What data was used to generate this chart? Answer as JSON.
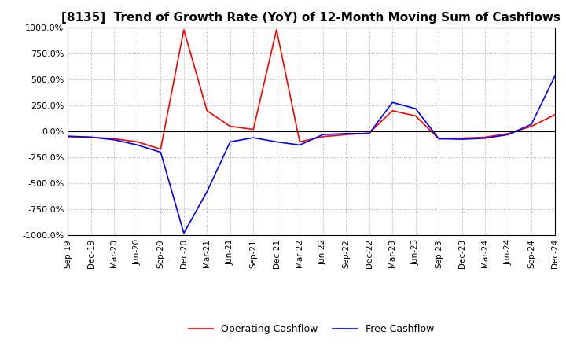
{
  "title": "[8135]  Trend of Growth Rate (YoY) of 12-Month Moving Sum of Cashflows",
  "ylim": [
    -1000,
    1000
  ],
  "yticks": [
    -1000,
    -750,
    -500,
    -250,
    0,
    250,
    500,
    750,
    1000
  ],
  "ytick_labels": [
    "-1000.0%",
    "-750.0%",
    "-500.0%",
    "-250.0%",
    "0.0%",
    "250.0%",
    "500.0%",
    "750.0%",
    "1000.0%"
  ],
  "x_labels": [
    "Sep-19",
    "Dec-19",
    "Mar-20",
    "Jun-20",
    "Sep-20",
    "Dec-20",
    "Mar-21",
    "Jun-21",
    "Sep-21",
    "Dec-21",
    "Mar-22",
    "Jun-22",
    "Sep-22",
    "Dec-22",
    "Mar-23",
    "Jun-23",
    "Sep-23",
    "Dec-23",
    "Mar-24",
    "Jun-24",
    "Sep-24",
    "Dec-24"
  ],
  "operating_cashflow": [
    -50,
    -55,
    -70,
    -100,
    -170,
    980,
    200,
    50,
    20,
    980,
    -100,
    -50,
    -30,
    -15,
    200,
    150,
    -70,
    -65,
    -55,
    -20,
    50,
    160
  ],
  "free_cashflow": [
    -45,
    -55,
    -80,
    -130,
    -200,
    -980,
    -580,
    -100,
    -60,
    -100,
    -130,
    -30,
    -20,
    -20,
    280,
    220,
    -70,
    -75,
    -65,
    -30,
    70,
    530
  ],
  "op_color": "#ff0000",
  "fc_color": "#0000ff",
  "background_color": "#ffffff",
  "grid_color": "#aaaaaa",
  "title_fontsize": 11,
  "legend_labels": [
    "Operating Cashflow",
    "Free Cashflow"
  ]
}
